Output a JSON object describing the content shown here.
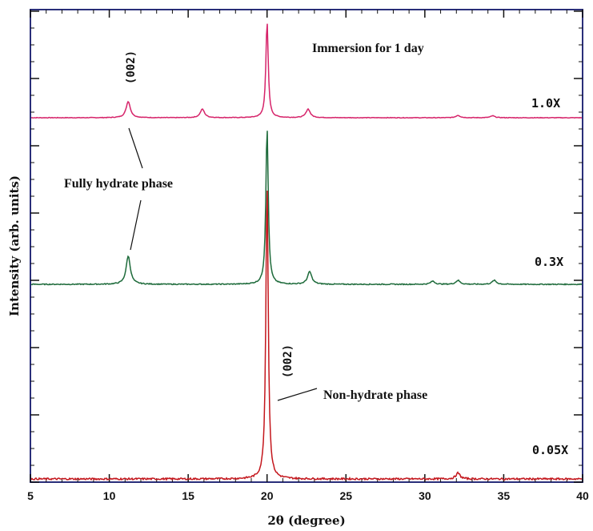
{
  "chart_data": {
    "type": "line",
    "title": "",
    "xlabel": "2θ (degree)",
    "ylabel": "Intensity (arb. units)",
    "xlim": [
      5,
      40
    ],
    "xticks": [
      5,
      10,
      15,
      20,
      25,
      30,
      35,
      40
    ],
    "y_ticks_labeled": false,
    "grid": false,
    "legend": "none",
    "series": [
      {
        "name": "1.0X",
        "color": "#d6246a",
        "peaks": [
          {
            "x": 11.2,
            "height": 0.17
          },
          {
            "x": 15.9,
            "height": 0.09
          },
          {
            "x": 20.0,
            "height": 1.0
          },
          {
            "x": 22.6,
            "height": 0.09
          },
          {
            "x": 32.1,
            "height": 0.025
          },
          {
            "x": 34.3,
            "height": 0.02
          }
        ]
      },
      {
        "name": "0.3X",
        "color": "#1e6b3b",
        "peaks": [
          {
            "x": 11.2,
            "height": 0.18
          },
          {
            "x": 20.0,
            "height": 1.0
          },
          {
            "x": 22.7,
            "height": 0.08
          },
          {
            "x": 30.5,
            "height": 0.02
          },
          {
            "x": 32.1,
            "height": 0.025
          },
          {
            "x": 34.4,
            "height": 0.025
          }
        ]
      },
      {
        "name": "0.05X",
        "color": "#c4161c",
        "peaks": [
          {
            "x": 20.0,
            "height": 1.0
          },
          {
            "x": 32.1,
            "height": 0.02
          }
        ]
      }
    ],
    "annotations": {
      "immersion": "Immersion for 1 day",
      "fully_hydrate": "Fully hydrate phase",
      "non_hydrate": "Non-hydrate phase",
      "peak_top": "(002)",
      "peak_bottom": "(002)"
    }
  }
}
